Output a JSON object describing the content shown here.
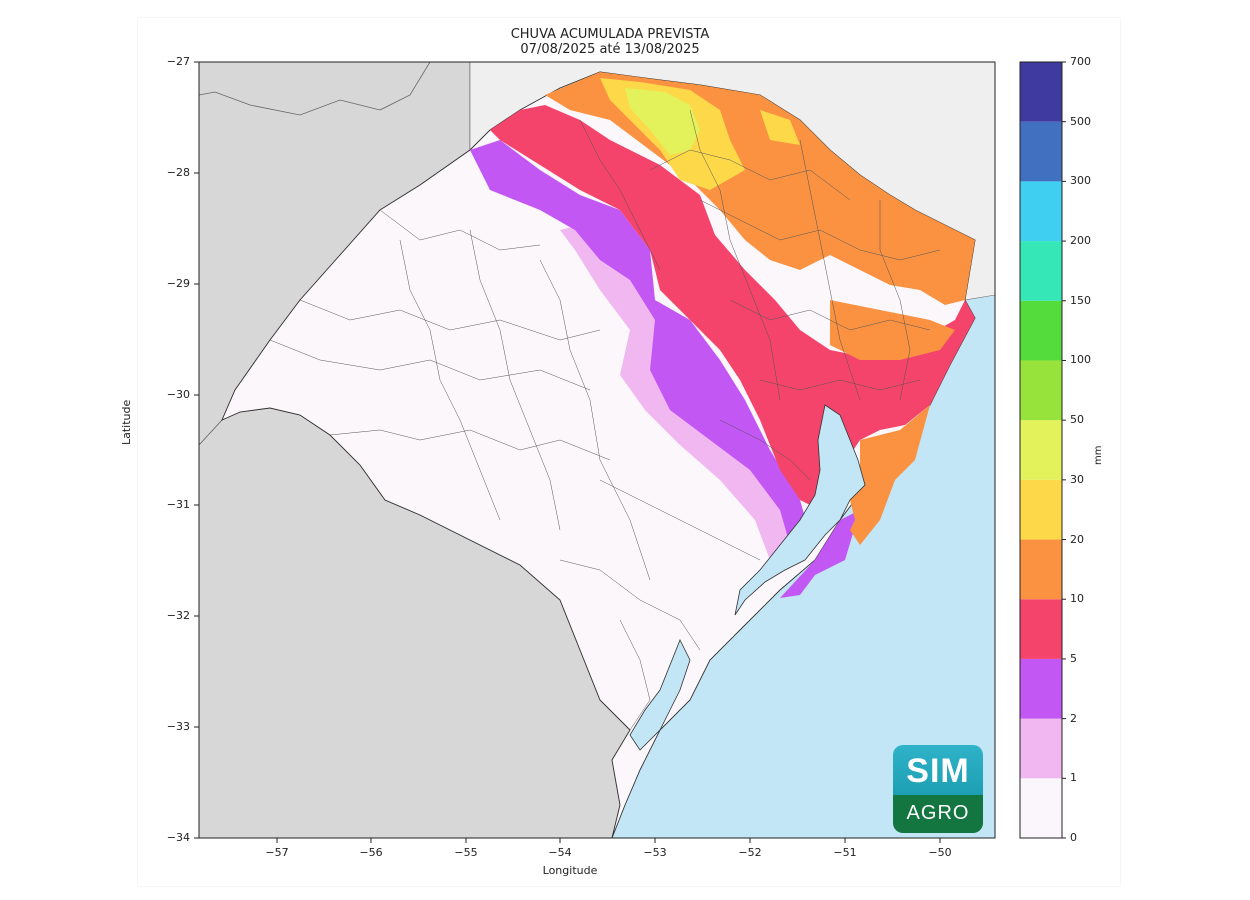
{
  "title_line1": "CHUVA ACUMULADA PREVISTA",
  "title_line2": "07/08/2025 até 13/08/2025",
  "x_axis": {
    "label": "Longitude",
    "ticks": [
      "−57",
      "−56",
      "−55",
      "−54",
      "−53",
      "−52",
      "−51",
      "−50"
    ]
  },
  "y_axis": {
    "label": "Latitude",
    "ticks": [
      "−27",
      "−28",
      "−29",
      "−30",
      "−31",
      "−32",
      "−33",
      "−34"
    ]
  },
  "colorbar": {
    "unit": "mm",
    "ticks": [
      "0",
      "1",
      "2",
      "5",
      "10",
      "20",
      "30",
      "50",
      "100",
      "150",
      "200",
      "300",
      "500",
      "700"
    ],
    "colors": [
      "#fbf6fb",
      "#f0b7f1",
      "#c357f4",
      "#f5446b",
      "#fa9241",
      "#fdd94a",
      "#e3f25a",
      "#98e33b",
      "#54dc3c",
      "#35e6b7",
      "#3fcff1",
      "#4170c0",
      "#3f3aa0"
    ]
  },
  "logo": {
    "top": "SIM",
    "bottom": "AGRO"
  },
  "colors": {
    "ocean": "#c3e6f7",
    "land_outside": "#d7d7d7",
    "land_north": "#efefef",
    "border": "#333333"
  }
}
